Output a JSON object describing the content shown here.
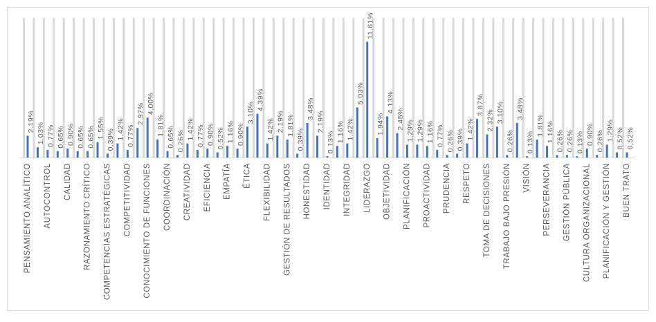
{
  "chart_data": {
    "type": "bar",
    "categories": [
      "PENSAMIENTO ANALÍTICO",
      null,
      "AUTOCONTROL",
      null,
      "CALIDAD",
      null,
      "RAZONAMIENTO CRÍTICO",
      null,
      "COMPETENCIAS ESTRATÉGICAS",
      null,
      "COMPETITIVIDAD",
      null,
      "CONOCIMIENTO DE FUNCIONES",
      null,
      "COORDINACIÓN",
      null,
      "CREATIVIDAD",
      null,
      "EFICIENCIA",
      null,
      "EMPATÍA",
      null,
      "ÉTICA",
      null,
      "FLEXIBILIDAD",
      null,
      "GESTIÓN DE RESULTADOS",
      null,
      "HONESTIDAD",
      null,
      "IDENTIDAD",
      null,
      "INTEGRIDAD",
      null,
      "LIDERAZGO",
      null,
      "OBJETIVIDAD",
      null,
      "PLANIFICACIÓN",
      null,
      "PROACTIVIDAD",
      null,
      "PRUDENCIA",
      null,
      "RESPETO",
      null,
      "TOMA DE DECISIONES",
      null,
      "TRABAJO BAJO PRESIÓN",
      null,
      "VISIÓN",
      null,
      "PERSEVERANCIA",
      null,
      "GESTIÓN PÚBLICA",
      null,
      "CULTURA ORGANIZACIONAL",
      null,
      "PLANIFICACIÓN Y GESTIÓN",
      null,
      "BUEN TRATO"
    ],
    "values": [
      2.19,
      1.03,
      0.77,
      0.65,
      0.9,
      0.65,
      0.65,
      1.55,
      0.39,
      1.42,
      0.77,
      2.97,
      4.0,
      1.81,
      0.65,
      0.26,
      1.42,
      0.77,
      0.9,
      0.52,
      1.16,
      0.9,
      3.1,
      4.39,
      1.42,
      2.19,
      1.81,
      0.39,
      3.48,
      2.19,
      0.13,
      1.16,
      1.42,
      5.03,
      11.61,
      1.94,
      4.13,
      2.45,
      1.29,
      1.29,
      1.16,
      0.77,
      0.26,
      0.39,
      1.42,
      3.87,
      2.32,
      3.1,
      0.26,
      3.48,
      0.13,
      1.81,
      1.16,
      0.26,
      0.26,
      0.13,
      0.9,
      0.26,
      1.29,
      0.52,
      0.52
    ],
    "value_labels": [
      "2,19%",
      "1,03%",
      "0,77%",
      "0,65%",
      "0,90%",
      "0,65%",
      "0,65%",
      "1,55%",
      "0,39%",
      "1,42%",
      "0,77%",
      "2,97%",
      "4,00%",
      "1,81%",
      "0,65%",
      "0,26%",
      "1,42%",
      "0,77%",
      "0,90%",
      "0,52%",
      "1,16%",
      "0,90%",
      "3,10%",
      "4,39%",
      "1,42%",
      "2,19%",
      "1,81%",
      "0,39%",
      "3,48%",
      "2,19%",
      "0,13%",
      "1,16%",
      "1,42%",
      "5,03%",
      "11,61%",
      "1,94%",
      "4,13%",
      "2,45%",
      "1,29%",
      "1,29%",
      "1,16%",
      "0,77%",
      "0,26%",
      "0,39%",
      "1,42%",
      "3,87%",
      "2,32%",
      "3,10%",
      "0,26%",
      "3,48%",
      "0,13%",
      "1,81%",
      "1,16%",
      "0,26%",
      "0,26%",
      "0,13%",
      "0,90%",
      "0,26%",
      "1,29%",
      "0,52%",
      "0,52%"
    ],
    "color": "#4472c4",
    "ylim": [
      0,
      14
    ]
  }
}
